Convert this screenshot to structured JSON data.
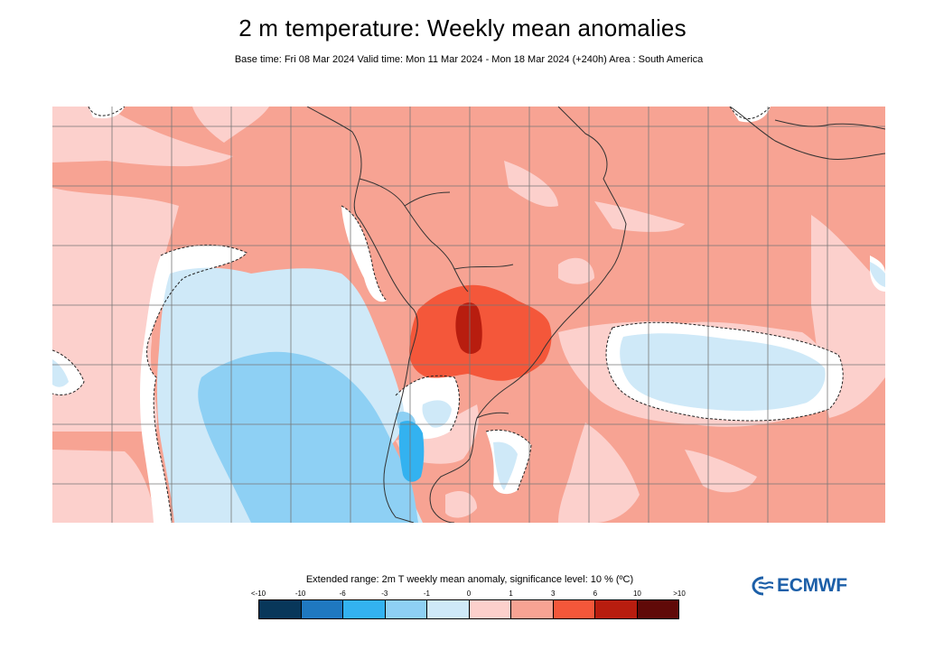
{
  "header": {
    "title": "2 m temperature: Weekly mean anomalies",
    "subtitle": "Base time: Fri 08 Mar 2024 Valid time: Mon 11 Mar 2024 - Mon 18 Mar 2024 (+240h) Area : South America"
  },
  "legend": {
    "title": "Extended range: 2m T weekly mean anomaly, significance level: 10 % (ºC)",
    "labels": [
      "<-10",
      "-10",
      "-6",
      "-3",
      "-1",
      "0",
      "1",
      "3",
      "6",
      "10",
      ">10"
    ],
    "colors": [
      "#08375a",
      "#1f78c0",
      "#33b2f0",
      "#8ed0f4",
      "#cfe9f8",
      "#fcd0cc",
      "#f7a393",
      "#f4573a",
      "#b81d0f",
      "#600a08"
    ]
  },
  "logo": {
    "text": "ECMWF"
  },
  "colors": {
    "anom_plus_1_3": "#f7a393",
    "anom_0_1": "#fcd0cc",
    "anom_minus_1_0": "#cfe9f8",
    "anom_minus_3_1": "#8ed0f4",
    "anom_minus_6_3": "#33b2f0",
    "anom_3_6": "#f4573a",
    "anom_6_10": "#b81d0f",
    "not_significant": "#ffffff"
  }
}
